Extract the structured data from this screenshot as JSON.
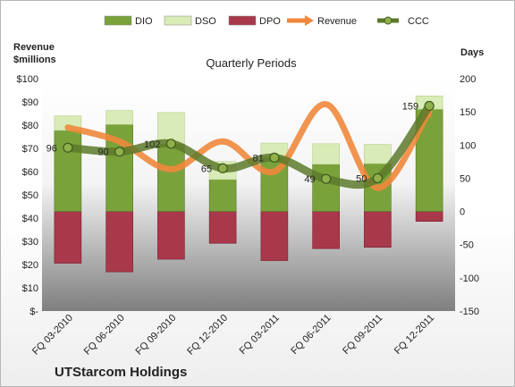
{
  "chart_data": {
    "type": "bar",
    "subtitle": "Quarterly Periods",
    "footer_title": "UTStarcom Holdings",
    "left_axis_label": "Revenue\n$millions",
    "right_axis_label": "Days",
    "categories": [
      "FQ 03-2010",
      "FQ 06-2010",
      "FQ 09-2010",
      "FQ 12-2010",
      "FQ 03-2011",
      "FQ 06-2011",
      "FQ 09-2011",
      "FQ 12-2011"
    ],
    "left_axis": {
      "min": 0,
      "max": 100,
      "step": 10,
      "ticks": [
        "$-",
        "$10",
        "$20",
        "$30",
        "$40",
        "$50",
        "$60",
        "$70",
        "$80",
        "$90",
        "$100"
      ]
    },
    "right_axis": {
      "min": -150,
      "max": 200,
      "step": 50,
      "ticks": [
        "-150",
        "-100",
        "-50",
        "0",
        "50",
        "100",
        "150",
        "200"
      ]
    },
    "series": [
      {
        "name": "DIO",
        "axis": "right",
        "kind": "stacked-bar",
        "color": "#7aa23a",
        "values": [
          122,
          131,
          102,
          48,
          82,
          71,
          72,
          154
        ]
      },
      {
        "name": "DSO",
        "axis": "right",
        "kind": "stacked-bar",
        "color": "#d9ebb6",
        "values": [
          22,
          21,
          47,
          27,
          21,
          31,
          29,
          20
        ]
      },
      {
        "name": "DPO",
        "axis": "right",
        "kind": "negative-bar",
        "color": "#a8384a",
        "values": [
          -78,
          -91,
          -72,
          -48,
          -74,
          -56,
          -54,
          -15
        ]
      },
      {
        "name": "Revenue",
        "axis": "left",
        "kind": "line",
        "color": "#f0883c",
        "values": [
          79,
          73,
          61,
          73,
          60,
          89,
          53,
          86
        ]
      },
      {
        "name": "CCC",
        "axis": "right",
        "kind": "line",
        "color": "#5d7a2b",
        "values": [
          96,
          90,
          102,
          65,
          81,
          49,
          50,
          159
        ]
      }
    ],
    "ccc_labels": [
      "96",
      "90",
      "102",
      "65",
      "81",
      "49",
      "50",
      "159"
    ],
    "legend_position": "top",
    "grid": false
  }
}
